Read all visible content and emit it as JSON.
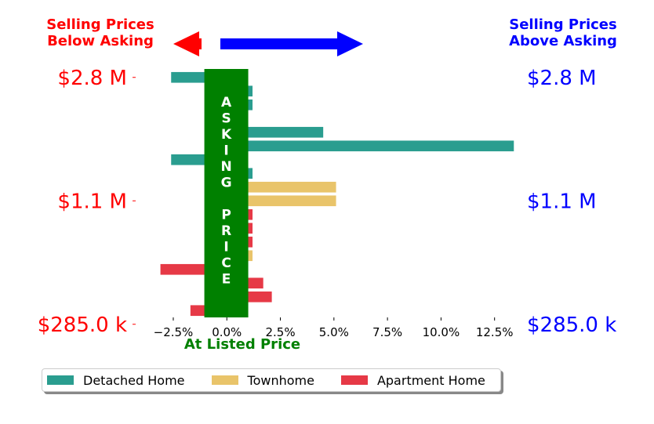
{
  "headers": {
    "left": "Selling Prices\nBelow Asking",
    "right": "Selling Prices\nAbove Asking",
    "left_color": "#ff0000",
    "right_color": "#0000ff"
  },
  "center_band": {
    "letters": [
      "A",
      "S",
      "K",
      "I",
      "N",
      "G",
      "",
      "P",
      "R",
      "I",
      "C",
      "E"
    ],
    "color": "#008000"
  },
  "legend": [
    {
      "label": "Detached Home",
      "color": "#2a9d8f"
    },
    {
      "label": "Townhome",
      "color": "#e9c46a"
    },
    {
      "label": "Apartment Home",
      "color": "#e63946"
    }
  ],
  "chart_data": {
    "type": "bar",
    "orientation": "horizontal",
    "xlabel": "At Listed Price",
    "xlabel_color": "#008000",
    "xlim": [
      -4.0,
      13.5
    ],
    "x_ticks": [
      -2.5,
      0.0,
      2.5,
      5.0,
      7.5,
      10.0,
      12.5
    ],
    "x_tick_labels": [
      "−2.5%",
      "0.0%",
      "2.5%",
      "5.0%",
      "7.5%",
      "10.0%",
      "12.5%"
    ],
    "y_ticks_left": [
      "$2.8 M",
      "$1.1 M",
      "$285.0 k"
    ],
    "y_ticks_right": [
      "$2.8 M",
      "$1.1 M",
      "$285.0 k"
    ],
    "y_tick_color_left": "#ff0000",
    "y_tick_color_right": "#0000ff",
    "ylim": [
      -0.5,
      17.5
    ],
    "y_tick_positions": [
      17,
      8,
      -1
    ],
    "grid": false,
    "legend_position": "bottom",
    "bars": [
      {
        "y": 17,
        "value": -2.6,
        "series": "Detached Home"
      },
      {
        "y": 16,
        "value": 1.2,
        "series": "Detached Home"
      },
      {
        "y": 15,
        "value": 1.2,
        "series": "Detached Home"
      },
      {
        "y": 14,
        "value": -1.0,
        "series": "Detached Home"
      },
      {
        "y": 13,
        "value": 4.5,
        "series": "Detached Home"
      },
      {
        "y": 12,
        "value": 13.4,
        "series": "Detached Home"
      },
      {
        "y": 11,
        "value": -2.6,
        "series": "Detached Home"
      },
      {
        "y": 10,
        "value": 1.2,
        "series": "Detached Home"
      },
      {
        "y": 9,
        "value": 5.1,
        "series": "Townhome"
      },
      {
        "y": 8,
        "value": 5.1,
        "series": "Townhome"
      },
      {
        "y": 7,
        "value": 1.2,
        "series": "Apartment Home"
      },
      {
        "y": 6,
        "value": 1.2,
        "series": "Apartment Home"
      },
      {
        "y": 5,
        "value": 1.2,
        "series": "Apartment Home"
      },
      {
        "y": 4,
        "value": 1.2,
        "series": "Townhome"
      },
      {
        "y": 3,
        "value": -3.1,
        "series": "Apartment Home"
      },
      {
        "y": 2,
        "value": 1.7,
        "series": "Apartment Home"
      },
      {
        "y": 1,
        "value": 2.1,
        "series": "Apartment Home"
      },
      {
        "y": 0,
        "value": -1.7,
        "series": "Apartment Home"
      }
    ]
  }
}
